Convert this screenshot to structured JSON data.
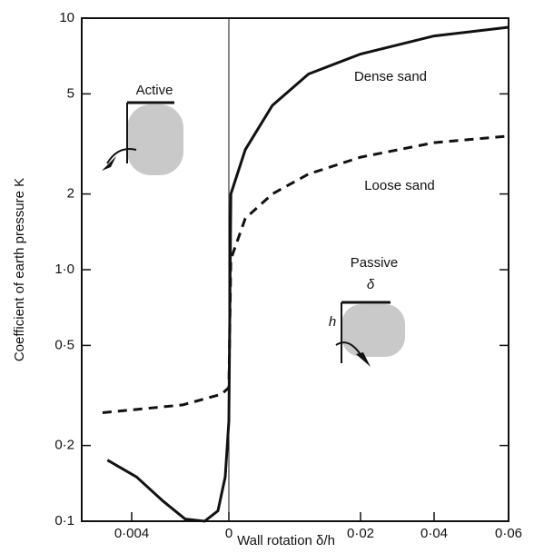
{
  "chart_data": {
    "type": "line",
    "y_label": "Coefficient of earth pressure K",
    "x_label": "Wall rotation δ/h",
    "log_y": true,
    "xlim": [
      -0.0055,
      0.06
    ],
    "ylim": [
      0.1,
      10
    ],
    "xticks": [
      {
        "value": -0.004,
        "label": "0·004"
      },
      0,
      {
        "value": 0.02,
        "label": "0·02"
      },
      {
        "value": 0.04,
        "label": "0·04"
      },
      {
        "value": 0.06,
        "label": "0·06"
      }
    ],
    "yticks": [
      {
        "value": 0.1,
        "label": "0·1"
      },
      {
        "value": 0.2,
        "label": "0·2"
      },
      {
        "value": 0.5,
        "label": "0·5"
      },
      {
        "value": 1.0,
        "label": "1·0"
      },
      2,
      5,
      10
    ],
    "series": [
      {
        "name": "Dense sand",
        "color": "#111111",
        "dash": false,
        "x": [
          -0.005,
          -0.0038,
          -0.0027,
          -0.0018,
          -0.001,
          -0.00045,
          -0.00015,
          0,
          0.0003,
          0.0025,
          0.0066,
          0.0121,
          0.02,
          0.04,
          0.06
        ],
        "values": [
          0.175,
          0.15,
          0.12,
          0.102,
          0.1,
          0.11,
          0.15,
          0.25,
          2.0,
          3.0,
          4.5,
          6.0,
          7.2,
          8.5,
          9.2
        ]
      },
      {
        "name": "Loose sand",
        "color": "#111111",
        "dash": true,
        "x": [
          -0.0052,
          -0.0019,
          -0.0003,
          0,
          0.0003,
          0.0025,
          0.0066,
          0.0121,
          0.02,
          0.04,
          0.06
        ],
        "values": [
          0.27,
          0.29,
          0.32,
          0.34,
          1.1,
          1.6,
          2.0,
          2.4,
          2.8,
          3.2,
          3.4
        ]
      }
    ],
    "annotations": {
      "active": "Active",
      "passive": "Passive",
      "delta": "δ",
      "h": "h"
    }
  }
}
